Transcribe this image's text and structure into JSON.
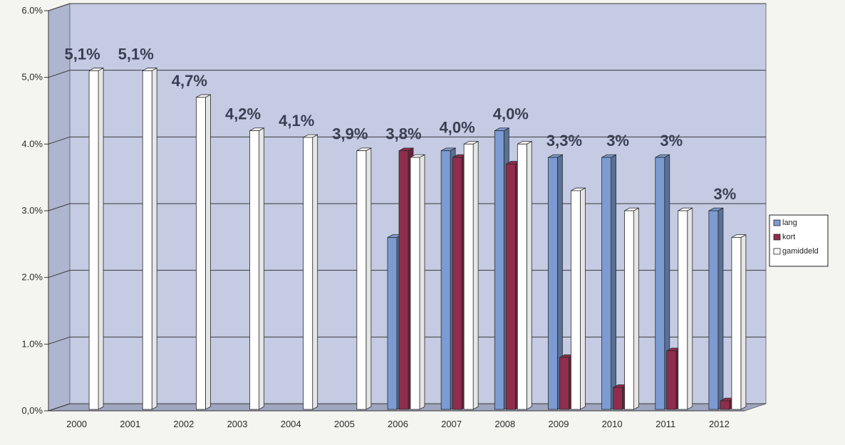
{
  "chart_data": {
    "type": "bar",
    "categories": [
      "2000",
      "2001",
      "2002",
      "2003",
      "2004",
      "2005",
      "2006",
      "2007",
      "2008",
      "2009",
      "2010",
      "2011",
      "2012"
    ],
    "series": [
      {
        "name": "lang",
        "color": "#7b9bd2",
        "values": [
          null,
          null,
          null,
          null,
          null,
          null,
          2.6,
          3.9,
          4.2,
          3.8,
          3.8,
          3.8,
          3.0
        ]
      },
      {
        "name": "kort",
        "color": "#8f2d4d",
        "values": [
          null,
          null,
          null,
          null,
          null,
          null,
          3.9,
          3.8,
          3.7,
          0.8,
          0.35,
          0.9,
          0.15
        ]
      },
      {
        "name": "gamiddeld",
        "color": "#ffffff",
        "values": [
          5.1,
          5.1,
          4.7,
          4.2,
          4.1,
          3.9,
          3.8,
          4.0,
          4.0,
          3.3,
          3.0,
          3.0,
          2.6
        ]
      }
    ],
    "yticks": [
      "0,0%",
      "1.0%",
      "2.0%",
      "3.0%",
      "4.0%",
      "5,0%",
      "6.0%"
    ],
    "ylim": [
      0,
      6
    ],
    "data_labels": [
      {
        "category": "2000",
        "text": "5,1%"
      },
      {
        "category": "2001",
        "text": "5,1%"
      },
      {
        "category": "2002",
        "text": "4,7%"
      },
      {
        "category": "2003",
        "text": "4,2%"
      },
      {
        "category": "2004",
        "text": "4,1%"
      },
      {
        "category": "2005",
        "text": "3,9%"
      },
      {
        "category": "2006",
        "text": "3,8%"
      },
      {
        "category": "2007",
        "text": "4,0%"
      },
      {
        "category": "2008",
        "text": "4,0%"
      },
      {
        "category": "2009",
        "text": "3,3%"
      },
      {
        "category": "2010",
        "text": "3%"
      },
      {
        "category": "2011",
        "text": "3%"
      },
      {
        "category": "2012",
        "text": "3%"
      }
    ],
    "legend_position": "right",
    "grid": true,
    "wall_color": "#c4cbe3"
  }
}
